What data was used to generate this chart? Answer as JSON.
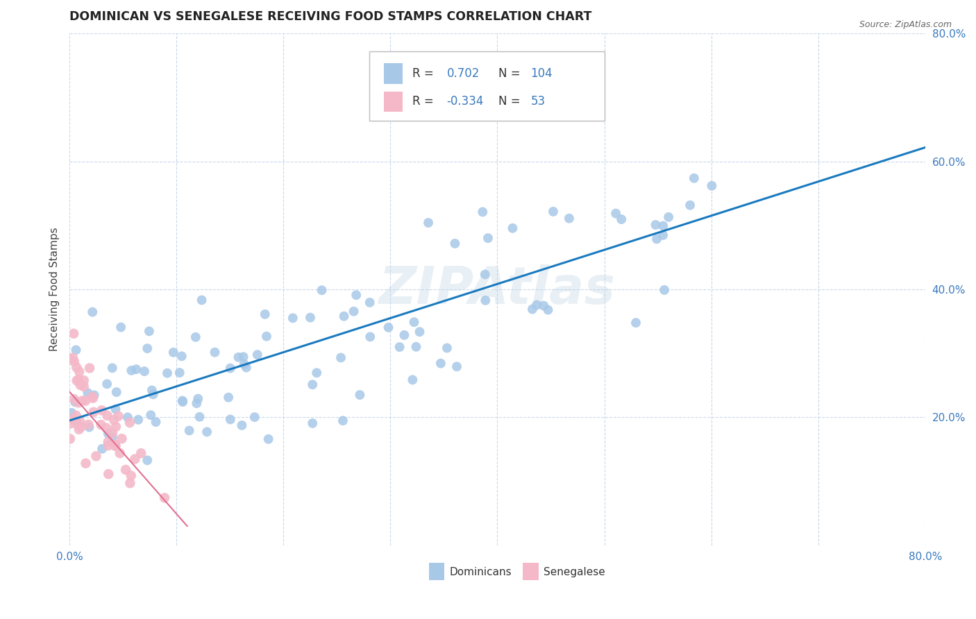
{
  "title": "DOMINICAN VS SENEGALESE RECEIVING FOOD STAMPS CORRELATION CHART",
  "source": "Source: ZipAtlas.com",
  "ylabel": "Receiving Food Stamps",
  "xlim": [
    0.0,
    0.8
  ],
  "ylim": [
    0.0,
    0.8
  ],
  "watermark": "ZIPAtlas",
  "blue_R": 0.702,
  "blue_N": 104,
  "pink_R": -0.334,
  "pink_N": 53,
  "blue_dot_color": "#a8c8e8",
  "pink_dot_color": "#f4b8c8",
  "trend_blue": "#1a7abf",
  "trend_pink": "#e07090",
  "legend_text_color": "#3a7abf",
  "legend_box_color": "#a8c8e8",
  "legend_pink_color": "#f4b8c8",
  "background": "#ffffff",
  "grid_color": "#c8d8ec",
  "blue_seed": 7,
  "pink_seed": 3,
  "trend_line_start_x": 0.0,
  "trend_line_end_x": 0.8,
  "trend_line_start_y": 0.195,
  "trend_line_end_y": 0.622,
  "pink_trend_start_x": 0.0,
  "pink_trend_end_x": 0.11,
  "pink_trend_start_y": 0.24,
  "pink_trend_end_y": 0.03
}
